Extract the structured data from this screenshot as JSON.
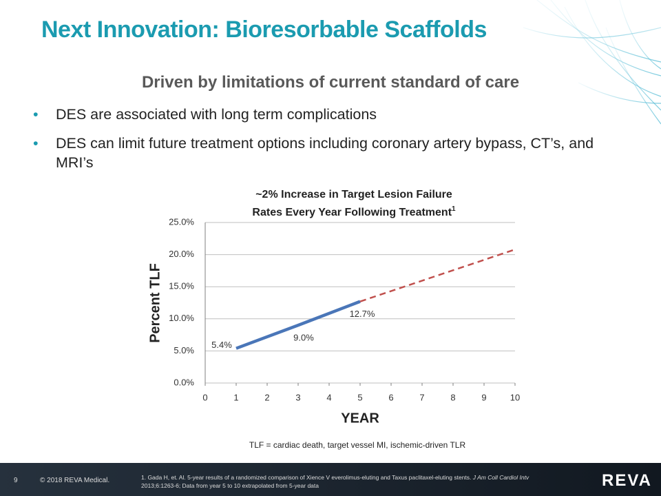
{
  "slide": {
    "title": "Next Innovation: Bioresorbable Scaffolds",
    "subtitle": "Driven by limitations of current standard of care",
    "bullets": [
      "DES are associated with long term complications",
      "DES can limit future treatment options including coronary artery bypass, CT’s, and MRI’s"
    ],
    "note": "TLF = cardiac death, target vessel MI, ischemic-driven TLR",
    "page_number": "9",
    "copyright": "© 2018 REVA Medical.",
    "reference": "1. Gada H, et. Al. 5-year results of a randomized comparison of Xience V everolimus-eluting and Taxus paclitaxel-eluting stents.",
    "reference_journal": "J Am Coll Cardiol Intv",
    "reference_line2": "2013;6:1263-6; Data from year 5 to 10 extrapolated from 5-year data",
    "logo": "REVA"
  },
  "chart_data": {
    "type": "line",
    "title_lines": [
      "~2% Increase in Target Lesion Failure",
      "Rates Every Year Following Treatment"
    ],
    "title_superscript": "1",
    "x_label": "YEAR",
    "y_label": "Percent TLF",
    "xlim": [
      0,
      10
    ],
    "xticks": [
      0,
      1,
      2,
      3,
      4,
      5,
      6,
      7,
      8,
      9,
      10
    ],
    "ylim": [
      0,
      25
    ],
    "yticks": [
      {
        "value": 0,
        "label": "0.0%"
      },
      {
        "value": 5,
        "label": "5.0%"
      },
      {
        "value": 10,
        "label": "10.0%"
      },
      {
        "value": 15,
        "label": "15.0%"
      },
      {
        "value": 20,
        "label": "20.0%"
      },
      {
        "value": 25,
        "label": "25.0%"
      }
    ],
    "grid": true,
    "series": [
      {
        "color": "#4a76b8",
        "dashed": false,
        "x": [
          1,
          3,
          5
        ],
        "values": [
          5.4,
          9.0,
          12.7
        ],
        "value_labels": [
          "5.4%",
          "9.0%",
          "12.7%"
        ]
      },
      {
        "color": "#c0504d",
        "dashed": true,
        "x": [
          5,
          10
        ],
        "values": [
          12.7,
          20.8
        ]
      }
    ]
  }
}
